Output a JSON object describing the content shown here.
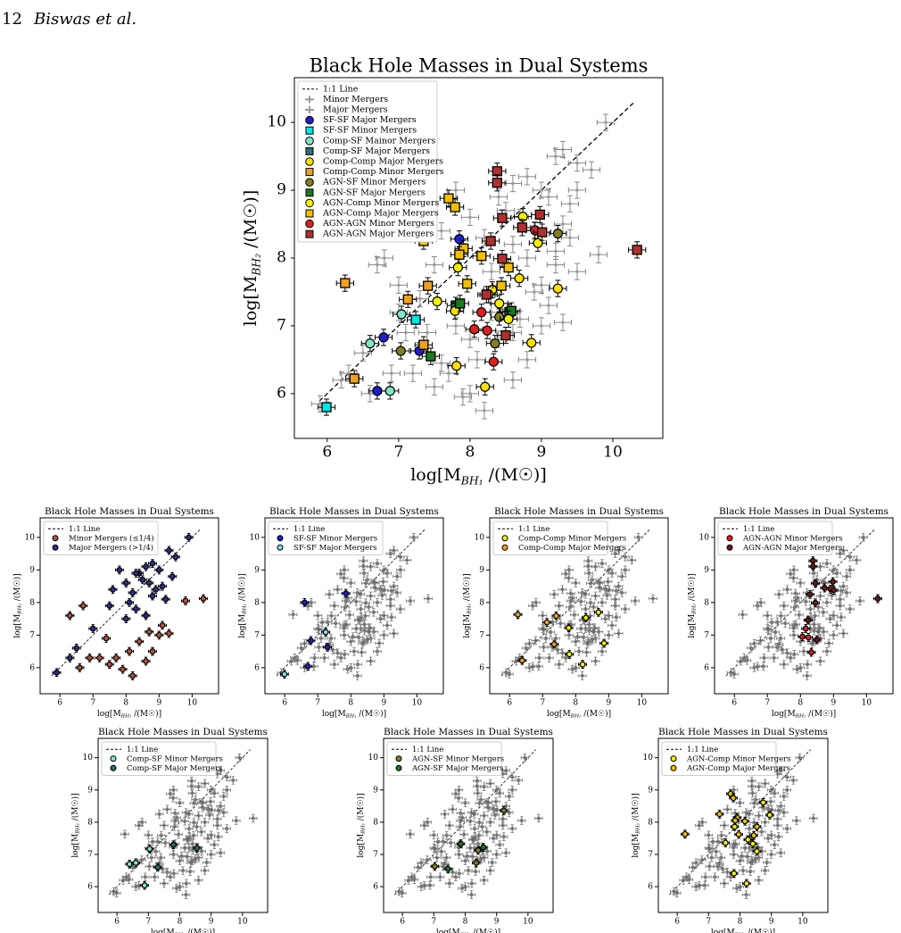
{
  "header": {
    "page": "12",
    "authors": "Biswas et al."
  },
  "chart_data": [
    {
      "type": "scatter",
      "title": "Black Hole Masses in Dual Systems",
      "xlabel": [
        "log[M",
        "BH₁",
        " /(M☉)]"
      ],
      "ylabel": [
        "log[M",
        "BH₂",
        " /(M☉)]"
      ],
      "line_label": "1:1 Line",
      "err": 0.12,
      "xlim": [
        5.54,
        10.7
      ],
      "ylim": [
        5.34,
        10.66
      ],
      "xticks": [
        6,
        7,
        8,
        9,
        10
      ],
      "yticks": [
        6,
        7,
        8,
        9,
        10
      ],
      "series": [
        {
          "name": "Minor Mergers",
          "color": "#999999",
          "marker": "plus",
          "x": [
            8.2,
            7.9,
            8.0,
            7.7,
            8.6,
            8.8,
            9.3,
            9.8,
            7.4,
            7.6,
            8.1,
            8.4,
            9.1,
            8.9,
            7.2,
            6.6,
            6.9,
            7.8,
            8.3,
            9.5,
            7.0,
            6.7,
            7.3,
            8.7,
            9.2,
            7.5,
            8.0,
            8.6,
            9.0,
            7.1
          ],
          "y": [
            5.75,
            5.95,
            6.0,
            6.3,
            6.2,
            6.5,
            7.05,
            8.05,
            6.9,
            6.45,
            6.5,
            6.8,
            7.3,
            7.5,
            6.3,
            6.0,
            6.3,
            7.0,
            7.2,
            7.8,
            7.6,
            7.9,
            7.4,
            7.1,
            7.9,
            6.1,
            6.8,
            6.9,
            7.0,
            6.9
          ]
        },
        {
          "name": "Major Mergers",
          "color": "#999999",
          "marker": "plus",
          "x": [
            9.9,
            9.5,
            9.3,
            9.2,
            8.8,
            8.6,
            9.0,
            9.4,
            8.7,
            9.1,
            8.5,
            8.9,
            9.3,
            8.4,
            8.2,
            7.8,
            7.6,
            9.5,
            8.0,
            9.2,
            8.6,
            9.7,
            7.5,
            6.3,
            6.5,
            7.0,
            8.3,
            9.0,
            8.8,
            9.4,
            6.8,
            5.9,
            6.2
          ],
          "y": [
            10.0,
            9.4,
            9.6,
            9.5,
            9.2,
            9.1,
            9.0,
            8.8,
            8.6,
            8.9,
            8.7,
            8.4,
            8.5,
            8.9,
            8.3,
            9.0,
            8.4,
            9.0,
            8.6,
            8.1,
            8.2,
            9.3,
            7.9,
            6.3,
            6.6,
            7.2,
            7.8,
            7.6,
            8.0,
            8.3,
            8.0,
            5.85,
            6.2
          ]
        },
        {
          "name": "SF-SF Major Mergers",
          "color": "#1f1fd0",
          "marker": "circle",
          "x": [
            6.79,
            6.7,
            7.29,
            7.85
          ],
          "y": [
            6.83,
            6.04,
            6.63,
            8.28
          ]
        },
        {
          "name": "SF-SF Minor Mergers",
          "color": "#00e5e5",
          "marker": "square",
          "x": [
            5.99,
            7.24
          ],
          "y": [
            5.8,
            7.09
          ]
        },
        {
          "name": "Comp-SF Mainor Mergers",
          "color": "#7fe5c8",
          "marker": "circle",
          "x": [
            6.6,
            7.04,
            6.88
          ],
          "y": [
            6.74,
            7.17,
            6.04
          ]
        },
        {
          "name": "Comp-SF Major Mergers",
          "color": "#2a6e6e",
          "marker": "square",
          "x": [
            7.8,
            8.55
          ],
          "y": [
            7.3,
            7.2
          ]
        },
        {
          "name": "Comp-Comp Major Mergers",
          "color": "#ffe000",
          "marker": "circle",
          "x": [
            7.81,
            8.21,
            8.86,
            9.23,
            8.69,
            7.79,
            8.31
          ],
          "y": [
            6.41,
            6.1,
            6.75,
            7.55,
            7.7,
            7.22,
            7.53
          ]
        },
        {
          "name": "Comp-Comp Minor Mergers",
          "color": "#f0a020",
          "marker": "square",
          "x": [
            6.25,
            6.38,
            7.35,
            7.41,
            7.13
          ],
          "y": [
            7.63,
            6.22,
            6.72,
            7.59,
            7.39
          ]
        },
        {
          "name": "AGN-SF Minor Mergers",
          "color": "#808020",
          "marker": "circle",
          "x": [
            7.03,
            8.35,
            8.41,
            9.23
          ],
          "y": [
            6.63,
            6.74,
            7.13,
            8.36
          ]
        },
        {
          "name": "AGN-SF Major Mergers",
          "color": "#1a7a1a",
          "marker": "square",
          "x": [
            7.45,
            7.86,
            8.58
          ],
          "y": [
            6.55,
            7.33,
            7.22
          ]
        },
        {
          "name": "AGN-Comp Minor Mergers",
          "color": "#f5f000",
          "marker": "circle",
          "x": [
            7.83,
            8.74,
            8.26,
            8.95,
            8.54,
            8.41,
            7.54
          ],
          "y": [
            7.86,
            8.61,
            7.46,
            8.22,
            7.1,
            7.33,
            7.36
          ]
        },
        {
          "name": "AGN-Comp Major Mergers",
          "color": "#f0c000",
          "marker": "square",
          "x": [
            7.7,
            7.79,
            7.35,
            7.91,
            8.16,
            7.85,
            8.54,
            7.96,
            8.44
          ],
          "y": [
            8.88,
            8.75,
            8.25,
            8.14,
            8.03,
            8.05,
            7.86,
            7.62,
            7.59
          ]
        },
        {
          "name": "AGN-AGN Minor Mergers",
          "color": "#e02020",
          "marker": "circle",
          "x": [
            8.06,
            8.33,
            8.24,
            8.16,
            8.91
          ],
          "y": [
            6.95,
            6.47,
            6.93,
            7.2,
            8.41
          ]
        },
        {
          "name": "AGN-AGN Major Mergers",
          "color": "#b03030",
          "marker": "square",
          "x": [
            8.38,
            8.38,
            8.45,
            8.29,
            8.73,
            9.01,
            10.34,
            8.45,
            8.98,
            8.23,
            8.5
          ],
          "y": [
            9.28,
            9.11,
            8.59,
            8.25,
            8.45,
            8.38,
            8.12,
            7.99,
            8.64,
            7.46,
            6.86
          ]
        }
      ]
    },
    {
      "type": "scatter",
      "title": "Black Hole Masses in Dual Systems",
      "xlabel": [
        "log[M",
        "BH₁",
        " /(M☉)]"
      ],
      "ylabel": [
        "log[M",
        "BH₂",
        " /(M☉)]"
      ],
      "line_label": "1:1 Line",
      "err": 0.12,
      "xlim": [
        5.4,
        10.8
      ],
      "ylim": [
        5.2,
        10.6
      ],
      "xticks": [
        6,
        7,
        8,
        9,
        10
      ],
      "yticks": [
        6,
        7,
        8,
        9,
        10
      ],
      "series": [
        {
          "name": "Minor Mergers (≤1/4)",
          "color": "#b5533c",
          "marker": "circle",
          "x": [
            8.2,
            7.9,
            7.7,
            8.6,
            8.8,
            9.3,
            9.8,
            7.4,
            8.1,
            8.4,
            9.1,
            7.2,
            6.6,
            6.9,
            6.3,
            6.7,
            8.7,
            7.5,
            9.0,
            10.34
          ],
          "y": [
            5.75,
            5.95,
            6.3,
            6.2,
            6.5,
            7.05,
            8.05,
            6.9,
            6.5,
            6.8,
            7.3,
            6.3,
            6.0,
            6.3,
            7.6,
            7.9,
            7.1,
            6.1,
            7.0,
            8.12
          ]
        },
        {
          "name": "Major Mergers (>1/4)",
          "color": "#2b2f8f",
          "marker": "circle",
          "x": [
            9.9,
            9.5,
            9.3,
            8.8,
            8.6,
            9.0,
            9.4,
            8.7,
            8.5,
            8.9,
            8.4,
            8.2,
            7.8,
            7.6,
            8.0,
            9.2,
            7.5,
            6.3,
            6.5,
            7.0,
            8.3,
            5.9,
            8.1,
            8.6,
            9.1,
            8.3,
            8.8,
            8.0
          ],
          "y": [
            10.0,
            9.4,
            9.6,
            9.2,
            9.1,
            9.0,
            8.8,
            8.6,
            8.7,
            8.4,
            8.9,
            8.3,
            9.0,
            8.4,
            8.6,
            8.1,
            7.9,
            6.3,
            6.6,
            7.2,
            7.8,
            5.85,
            8.0,
            7.6,
            8.5,
            8.9,
            8.2,
            7.5
          ]
        }
      ]
    },
    {
      "type": "scatter",
      "title": "Black Hole Masses in Dual Systems",
      "xlabel": [
        "log[M",
        "BH₁",
        " /(M☉)]"
      ],
      "ylabel": [
        "log[M",
        "BH₂",
        " /(M☉)]"
      ],
      "line_label": "1:1 Line",
      "err": 0.12,
      "xlim": [
        5.4,
        10.8
      ],
      "ylim": [
        5.2,
        10.6
      ],
      "xticks": [
        6,
        7,
        8,
        9,
        10
      ],
      "yticks": [
        6,
        7,
        8,
        9,
        10
      ],
      "series": [
        {
          "name": "SF-SF Minor Mergers",
          "color": "#1f1fd0",
          "marker": "circle",
          "x": [
            6.79,
            6.7,
            7.29,
            7.85,
            6.6
          ],
          "y": [
            6.83,
            6.04,
            6.63,
            8.28,
            8.0
          ]
        },
        {
          "name": "SF-SF Major Mergers",
          "color": "#7fe0e0",
          "marker": "circle",
          "x": [
            5.99,
            7.24
          ],
          "y": [
            5.8,
            7.09
          ]
        }
      ]
    },
    {
      "type": "scatter",
      "title": "Black Hole Masses in Dual Systems",
      "xlabel": [
        "log[M",
        "BH₁",
        " /(M☉)]"
      ],
      "ylabel": [
        "log[M",
        "BH₂",
        " /(M☉)]"
      ],
      "line_label": "1:1 Line",
      "err": 0.12,
      "xlim": [
        5.4,
        10.8
      ],
      "ylim": [
        5.2,
        10.6
      ],
      "xticks": [
        6,
        7,
        8,
        9,
        10
      ],
      "yticks": [
        6,
        7,
        8,
        9,
        10
      ],
      "series": [
        {
          "name": "Comp-Comp Minor Mergers",
          "color": "#f5f000",
          "marker": "circle",
          "x": [
            7.81,
            8.21,
            8.86,
            8.69,
            7.79,
            8.31
          ],
          "y": [
            6.41,
            6.1,
            6.75,
            7.7,
            7.22,
            7.53
          ]
        },
        {
          "name": "Comp-Comp Major Mergers",
          "color": "#f0a020",
          "marker": "circle",
          "x": [
            6.25,
            6.38,
            7.35,
            7.41,
            7.13
          ],
          "y": [
            7.63,
            6.22,
            6.72,
            7.59,
            7.39
          ]
        }
      ]
    },
    {
      "type": "scatter",
      "title": "Black Hole Masses in Dual Systems",
      "xlabel": [
        "log[M",
        "BH₁",
        " /(M☉)]"
      ],
      "ylabel": [
        "log[M",
        "BH₂",
        " /(M☉)]"
      ],
      "line_label": "1:1 Line",
      "err": 0.12,
      "xlim": [
        5.4,
        10.8
      ],
      "ylim": [
        5.2,
        10.6
      ],
      "xticks": [
        6,
        7,
        8,
        9,
        10
      ],
      "yticks": [
        6,
        7,
        8,
        9,
        10
      ],
      "series": [
        {
          "name": "AGN-AGN Minor Mergers",
          "color": "#e02020",
          "marker": "circle",
          "x": [
            8.06,
            8.33,
            8.24,
            8.16,
            8.91
          ],
          "y": [
            6.95,
            6.47,
            6.93,
            7.2,
            8.41
          ]
        },
        {
          "name": "AGN-AGN Major Mergers",
          "color": "#6b1a1a",
          "marker": "circle",
          "x": [
            8.38,
            8.38,
            8.45,
            8.29,
            8.73,
            9.01,
            10.34,
            8.45,
            8.98,
            8.23,
            8.5
          ],
          "y": [
            9.28,
            9.11,
            8.59,
            8.25,
            8.45,
            8.38,
            8.12,
            7.99,
            8.64,
            7.46,
            6.86
          ]
        }
      ]
    },
    {
      "type": "scatter",
      "title": "Black Hole Masses in Dual Systems",
      "xlabel": [
        "log[M",
        "BH₁",
        " /(M☉)]"
      ],
      "ylabel": [
        "log[M",
        "BH₂",
        " /(M☉)]"
      ],
      "line_label": "1:1 Line",
      "err": 0.12,
      "xlim": [
        5.4,
        10.8
      ],
      "ylim": [
        5.2,
        10.6
      ],
      "xticks": [
        6,
        7,
        8,
        9,
        10
      ],
      "yticks": [
        6,
        7,
        8,
        9,
        10
      ],
      "series": [
        {
          "name": "Comp-SF Minor Mergers",
          "color": "#7fe5c8",
          "marker": "circle",
          "x": [
            6.6,
            7.04,
            6.88,
            6.4
          ],
          "y": [
            6.74,
            7.17,
            6.04,
            6.7
          ]
        },
        {
          "name": "Comp-SF Major Mergers",
          "color": "#2a6e6e",
          "marker": "circle",
          "x": [
            7.8,
            8.55,
            7.3
          ],
          "y": [
            7.3,
            7.2,
            6.6
          ]
        }
      ]
    },
    {
      "type": "scatter",
      "title": "Black Hole Masses in Dual Systems",
      "xlabel": [
        "log[M",
        "BH₁",
        " /(M☉)]"
      ],
      "ylabel": [
        "log[M",
        "BH₂",
        " /(M☉)]"
      ],
      "line_label": "1:1 Line",
      "err": 0.12,
      "xlim": [
        5.4,
        10.8
      ],
      "ylim": [
        5.2,
        10.6
      ],
      "xticks": [
        6,
        7,
        8,
        9,
        10
      ],
      "yticks": [
        6,
        7,
        8,
        9,
        10
      ],
      "series": [
        {
          "name": "AGN-SF Minor Mergers",
          "color": "#808020",
          "marker": "circle",
          "x": [
            7.03,
            8.35,
            8.41,
            9.23
          ],
          "y": [
            6.63,
            6.74,
            7.13,
            8.36
          ]
        },
        {
          "name": "AGN-SF Major Mergers",
          "color": "#1a7a1a",
          "marker": "circle",
          "x": [
            7.45,
            7.86,
            8.58
          ],
          "y": [
            6.55,
            7.33,
            7.22
          ]
        }
      ]
    },
    {
      "type": "scatter",
      "title": "Black Hole Masses in Dual Systems",
      "xlabel": [
        "log[M",
        "BH₁",
        " /(M☉)]"
      ],
      "ylabel": [
        "log[M",
        "BH₂",
        " /(M☉)]"
      ],
      "line_label": "1:1 Line",
      "err": 0.12,
      "xlim": [
        5.4,
        10.8
      ],
      "ylim": [
        5.2,
        10.6
      ],
      "xticks": [
        6,
        7,
        8,
        9,
        10
      ],
      "yticks": [
        6,
        7,
        8,
        9,
        10
      ],
      "series": [
        {
          "name": "AGN-Comp Minor Mergers",
          "color": "#f5f000",
          "marker": "circle",
          "x": [
            7.83,
            8.74,
            8.26,
            8.95,
            8.54,
            8.41,
            7.54,
            7.81,
            8.21
          ],
          "y": [
            7.86,
            8.61,
            7.46,
            8.22,
            7.1,
            7.33,
            7.36,
            6.41,
            6.1
          ]
        },
        {
          "name": "AGN-Comp Major Mergers",
          "color": "#f0c000",
          "marker": "circle",
          "x": [
            7.7,
            7.79,
            7.35,
            7.91,
            8.16,
            7.85,
            8.54,
            7.96,
            8.44,
            6.25
          ],
          "y": [
            8.88,
            8.75,
            8.25,
            8.14,
            8.03,
            8.05,
            7.86,
            7.62,
            7.59,
            7.63
          ]
        }
      ]
    }
  ]
}
